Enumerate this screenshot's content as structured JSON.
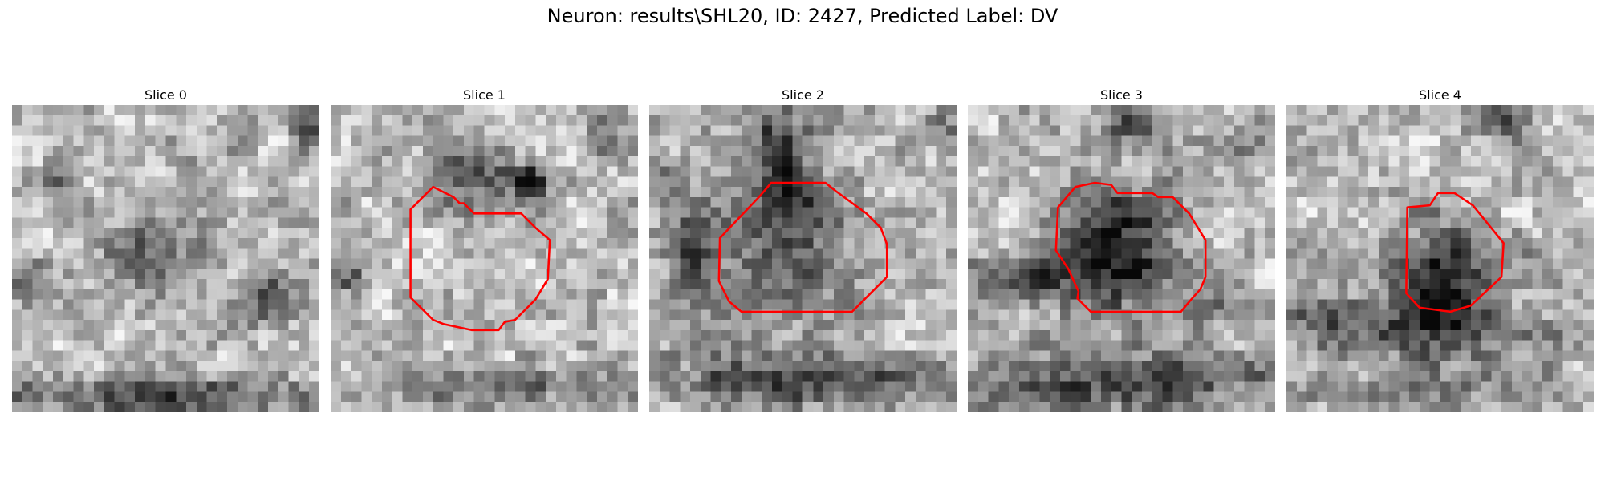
{
  "figure": {
    "title": "Neuron: results\\SHL20, ID: 2427, Predicted Label: DV"
  },
  "panels": [
    {
      "title": "Slice 0",
      "has_outline": false
    },
    {
      "title": "Slice 1",
      "has_outline": true
    },
    {
      "title": "Slice 2",
      "has_outline": true
    },
    {
      "title": "Slice 3",
      "has_outline": true
    },
    {
      "title": "Slice 4",
      "has_outline": true
    }
  ],
  "colors": {
    "outline": "#ff0000",
    "background": "#ffffff"
  }
}
